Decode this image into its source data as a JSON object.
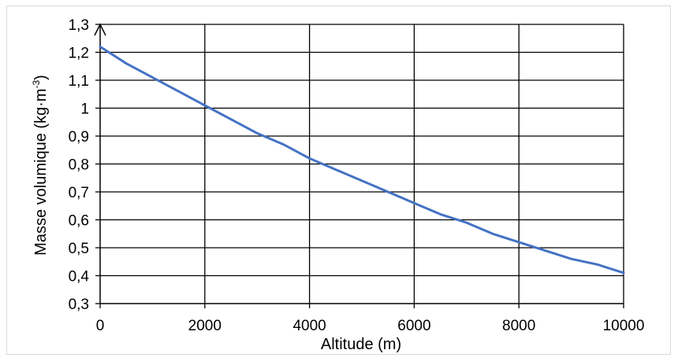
{
  "chart_data": {
    "type": "line",
    "title": "",
    "xlabel": "Altitude (m)",
    "ylabel_main": "Masse volumique (kg·m",
    "ylabel_sup": "-3",
    "ylabel_end": ")",
    "xlim": [
      0,
      10000
    ],
    "ylim": [
      0.3,
      1.3
    ],
    "x_ticks": [
      0,
      2000,
      4000,
      6000,
      8000,
      10000
    ],
    "x_tick_labels": [
      "0",
      "2000",
      "4000",
      "6000",
      "8000",
      "10000"
    ],
    "y_ticks": [
      0.3,
      0.4,
      0.5,
      0.6,
      0.7,
      0.8,
      0.9,
      1.0,
      1.1,
      1.2,
      1.3
    ],
    "y_tick_labels": [
      "0,3",
      "0,4",
      "0,5",
      "0,6",
      "0,7",
      "0,8",
      "0,9",
      "1",
      "1,1",
      "1,2",
      "1,3"
    ],
    "grid": true,
    "line_color": "#4472c4",
    "series": [
      {
        "x": [
          0,
          500,
          1000,
          1500,
          2000,
          2500,
          3000,
          3500,
          4000,
          4500,
          5000,
          5500,
          6000,
          6500,
          7000,
          7500,
          8000,
          8500,
          9000,
          9500,
          10000
        ],
        "values": [
          1.22,
          1.16,
          1.11,
          1.06,
          1.01,
          0.96,
          0.91,
          0.87,
          0.82,
          0.78,
          0.74,
          0.7,
          0.66,
          0.62,
          0.59,
          0.55,
          0.52,
          0.49,
          0.46,
          0.44,
          0.41
        ]
      }
    ]
  }
}
